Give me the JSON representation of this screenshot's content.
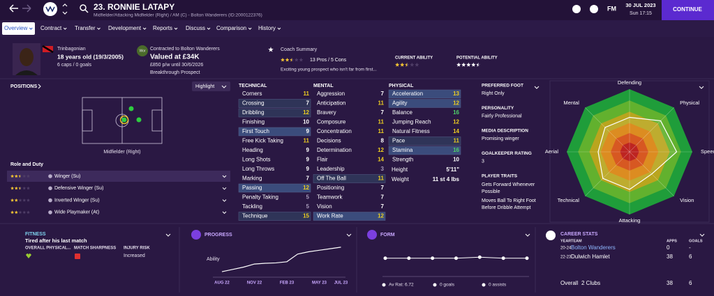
{
  "header": {
    "name": "23. RONNIE LATAPY",
    "subtitle": "Midfielder/Attacking Midfielder (Right) / AM (C) - Bolton Wanderers (ID:2000122376)",
    "fm": "FM",
    "date": "30 JUL 2023",
    "time": "Sun 17:15",
    "continue": "CONTINUE"
  },
  "nav": [
    "Overview",
    "Contract",
    "Transfer",
    "Development",
    "Reports",
    "Discuss",
    "Comparison",
    "History"
  ],
  "info": {
    "nationality": "Trinbagonian",
    "age": "18 years old (19/3/2005)",
    "caps": "6 caps / 0 goals",
    "badge": "Wor",
    "contract": "Contracted to Bolton Wanderers",
    "value": "Valued at £34K",
    "wage": "£850 p/w until 30/6/2026",
    "status": "Breakthrough Prospect",
    "coach_title": "Coach Summary",
    "coach_stars": 2.5,
    "pros_cons": "13 Pros / 5 Cons",
    "coach_text": "Exciting young prospect who isn't far from first...",
    "ca_label": "CURRENT ABILITY",
    "ca_stars": 2.5,
    "pa_label": "POTENTIAL ABILITY",
    "pa_stars": 4.5
  },
  "positions": {
    "title": "POSITIONS",
    "highlight": "Highlight",
    "position": "Midfielder (Right)",
    "role_title": "Role and Duty",
    "roles": [
      {
        "name": "Winger (Su)",
        "stars": 2.5
      },
      {
        "name": "Defensive Winger (Su)",
        "stars": 2.5
      },
      {
        "name": "Inverted Winger (Su)",
        "stars": 2
      },
      {
        "name": "Wide Playmaker (At)",
        "stars": 2
      }
    ]
  },
  "attributes": {
    "technical": {
      "title": "TECHNICAL",
      "rows": [
        {
          "name": "Corners",
          "value": 11
        },
        {
          "name": "Crossing",
          "value": 7,
          "highlight": 1
        },
        {
          "name": "Dribbling",
          "value": 12,
          "highlight": 1
        },
        {
          "name": "Finishing",
          "value": 10
        },
        {
          "name": "First Touch",
          "value": 9,
          "highlight": 2
        },
        {
          "name": "Free Kick Taking",
          "value": 11
        },
        {
          "name": "Heading",
          "value": 9
        },
        {
          "name": "Long Shots",
          "value": 9
        },
        {
          "name": "Long Throws",
          "value": 9
        },
        {
          "name": "Marking",
          "value": 7
        },
        {
          "name": "Passing",
          "value": 12,
          "highlight": 2
        },
        {
          "name": "Penalty Taking",
          "value": 5
        },
        {
          "name": "Tackling",
          "value": 5
        },
        {
          "name": "Technique",
          "value": 15,
          "highlight": 1
        }
      ]
    },
    "mental": {
      "title": "MENTAL",
      "rows": [
        {
          "name": "Aggression",
          "value": 7
        },
        {
          "name": "Anticipation",
          "value": 11
        },
        {
          "name": "Bravery",
          "value": 7
        },
        {
          "name": "Composure",
          "value": 11
        },
        {
          "name": "Concentration",
          "value": 11
        },
        {
          "name": "Decisions",
          "value": 8
        },
        {
          "name": "Determination",
          "value": 12
        },
        {
          "name": "Flair",
          "value": 14
        },
        {
          "name": "Leadership",
          "value": 3
        },
        {
          "name": "Off The Ball",
          "value": 11,
          "highlight": 1
        },
        {
          "name": "Positioning",
          "value": 7
        },
        {
          "name": "Teamwork",
          "value": 7
        },
        {
          "name": "Vision",
          "value": 7
        },
        {
          "name": "Work Rate",
          "value": 12,
          "highlight": 2
        }
      ]
    },
    "physical": {
      "title": "PHYSICAL",
      "rows": [
        {
          "name": "Acceleration",
          "value": 13,
          "highlight": 2
        },
        {
          "name": "Agility",
          "value": 12,
          "highlight": 2
        },
        {
          "name": "Balance",
          "value": 16
        },
        {
          "name": "Jumping Reach",
          "value": 12
        },
        {
          "name": "Natural Fitness",
          "value": 14
        },
        {
          "name": "Pace",
          "value": 11,
          "highlight": 1
        },
        {
          "name": "Stamina",
          "value": 16,
          "highlight": 2
        },
        {
          "name": "Strength",
          "value": 10
        }
      ],
      "height_label": "Height",
      "height": "5'11\"",
      "weight_label": "Weight",
      "weight": "11 st 4 lbs"
    }
  },
  "details": [
    {
      "title": "PREFERRED FOOT",
      "text": "Right Only"
    },
    {
      "title": "PERSONALITY",
      "text": "Fairly Professional"
    },
    {
      "title": "MEDIA DESCRIPTION",
      "text": "Promising winger"
    },
    {
      "title": "GOALKEEPER RATING",
      "text": "3"
    }
  ],
  "traits": {
    "title": "PLAYER TRAITS",
    "items": [
      [
        "Gets Forward Whenever",
        "Possible"
      ],
      [
        "Moves Ball To Right Foot",
        "Before Dribble Attempt"
      ]
    ]
  },
  "radar": {
    "labels": [
      "Defending",
      "Physical",
      "Speed",
      "Vision",
      "Attacking",
      "Technical",
      "Aerial",
      "Mental"
    ],
    "values": [
      11,
      14,
      15,
      10,
      12,
      12,
      10,
      11
    ],
    "rlim": [
      0,
      20
    ]
  },
  "fitness": {
    "title": "FITNESS",
    "status": "Tired after his last match",
    "labels": [
      "OVERALL PHYSICAL...",
      "MATCH SHARPNESS",
      "INJURY RISK"
    ],
    "injury": "Increased"
  },
  "progress": {
    "type": "line",
    "title": "PROGRESS",
    "y_label": "Ability",
    "categories": [
      "AUG 22",
      null,
      null,
      "NOV 22",
      null,
      null,
      "FEB 23",
      null,
      null,
      "MAY 23",
      null,
      "JUL 23"
    ],
    "values": [
      18,
      24,
      30,
      38,
      40,
      41,
      44,
      64,
      70,
      74,
      78,
      82
    ],
    "ylim": [
      0,
      100
    ]
  },
  "form": {
    "type": "line",
    "title": "FORM",
    "values": [
      6.7,
      6.7,
      6.7,
      6.7,
      6.8,
      6.7,
      6.7
    ],
    "ylim": [
      5,
      8.5
    ],
    "av_rat": "Av Rat: 6.72",
    "goals": "0 goals",
    "assists": "0 assists"
  },
  "career": {
    "title": "CAREER STATS",
    "headers": [
      "YEAR",
      "TEAM",
      "APPS",
      "GOALS"
    ],
    "rows": [
      [
        "20-24",
        "Bolton Wanderers",
        "0",
        "-"
      ],
      [
        "22-23",
        "Dulwich Hamlet",
        "38",
        "6"
      ]
    ],
    "total": [
      "Overall",
      "2 Clubs",
      "38",
      "6"
    ]
  }
}
